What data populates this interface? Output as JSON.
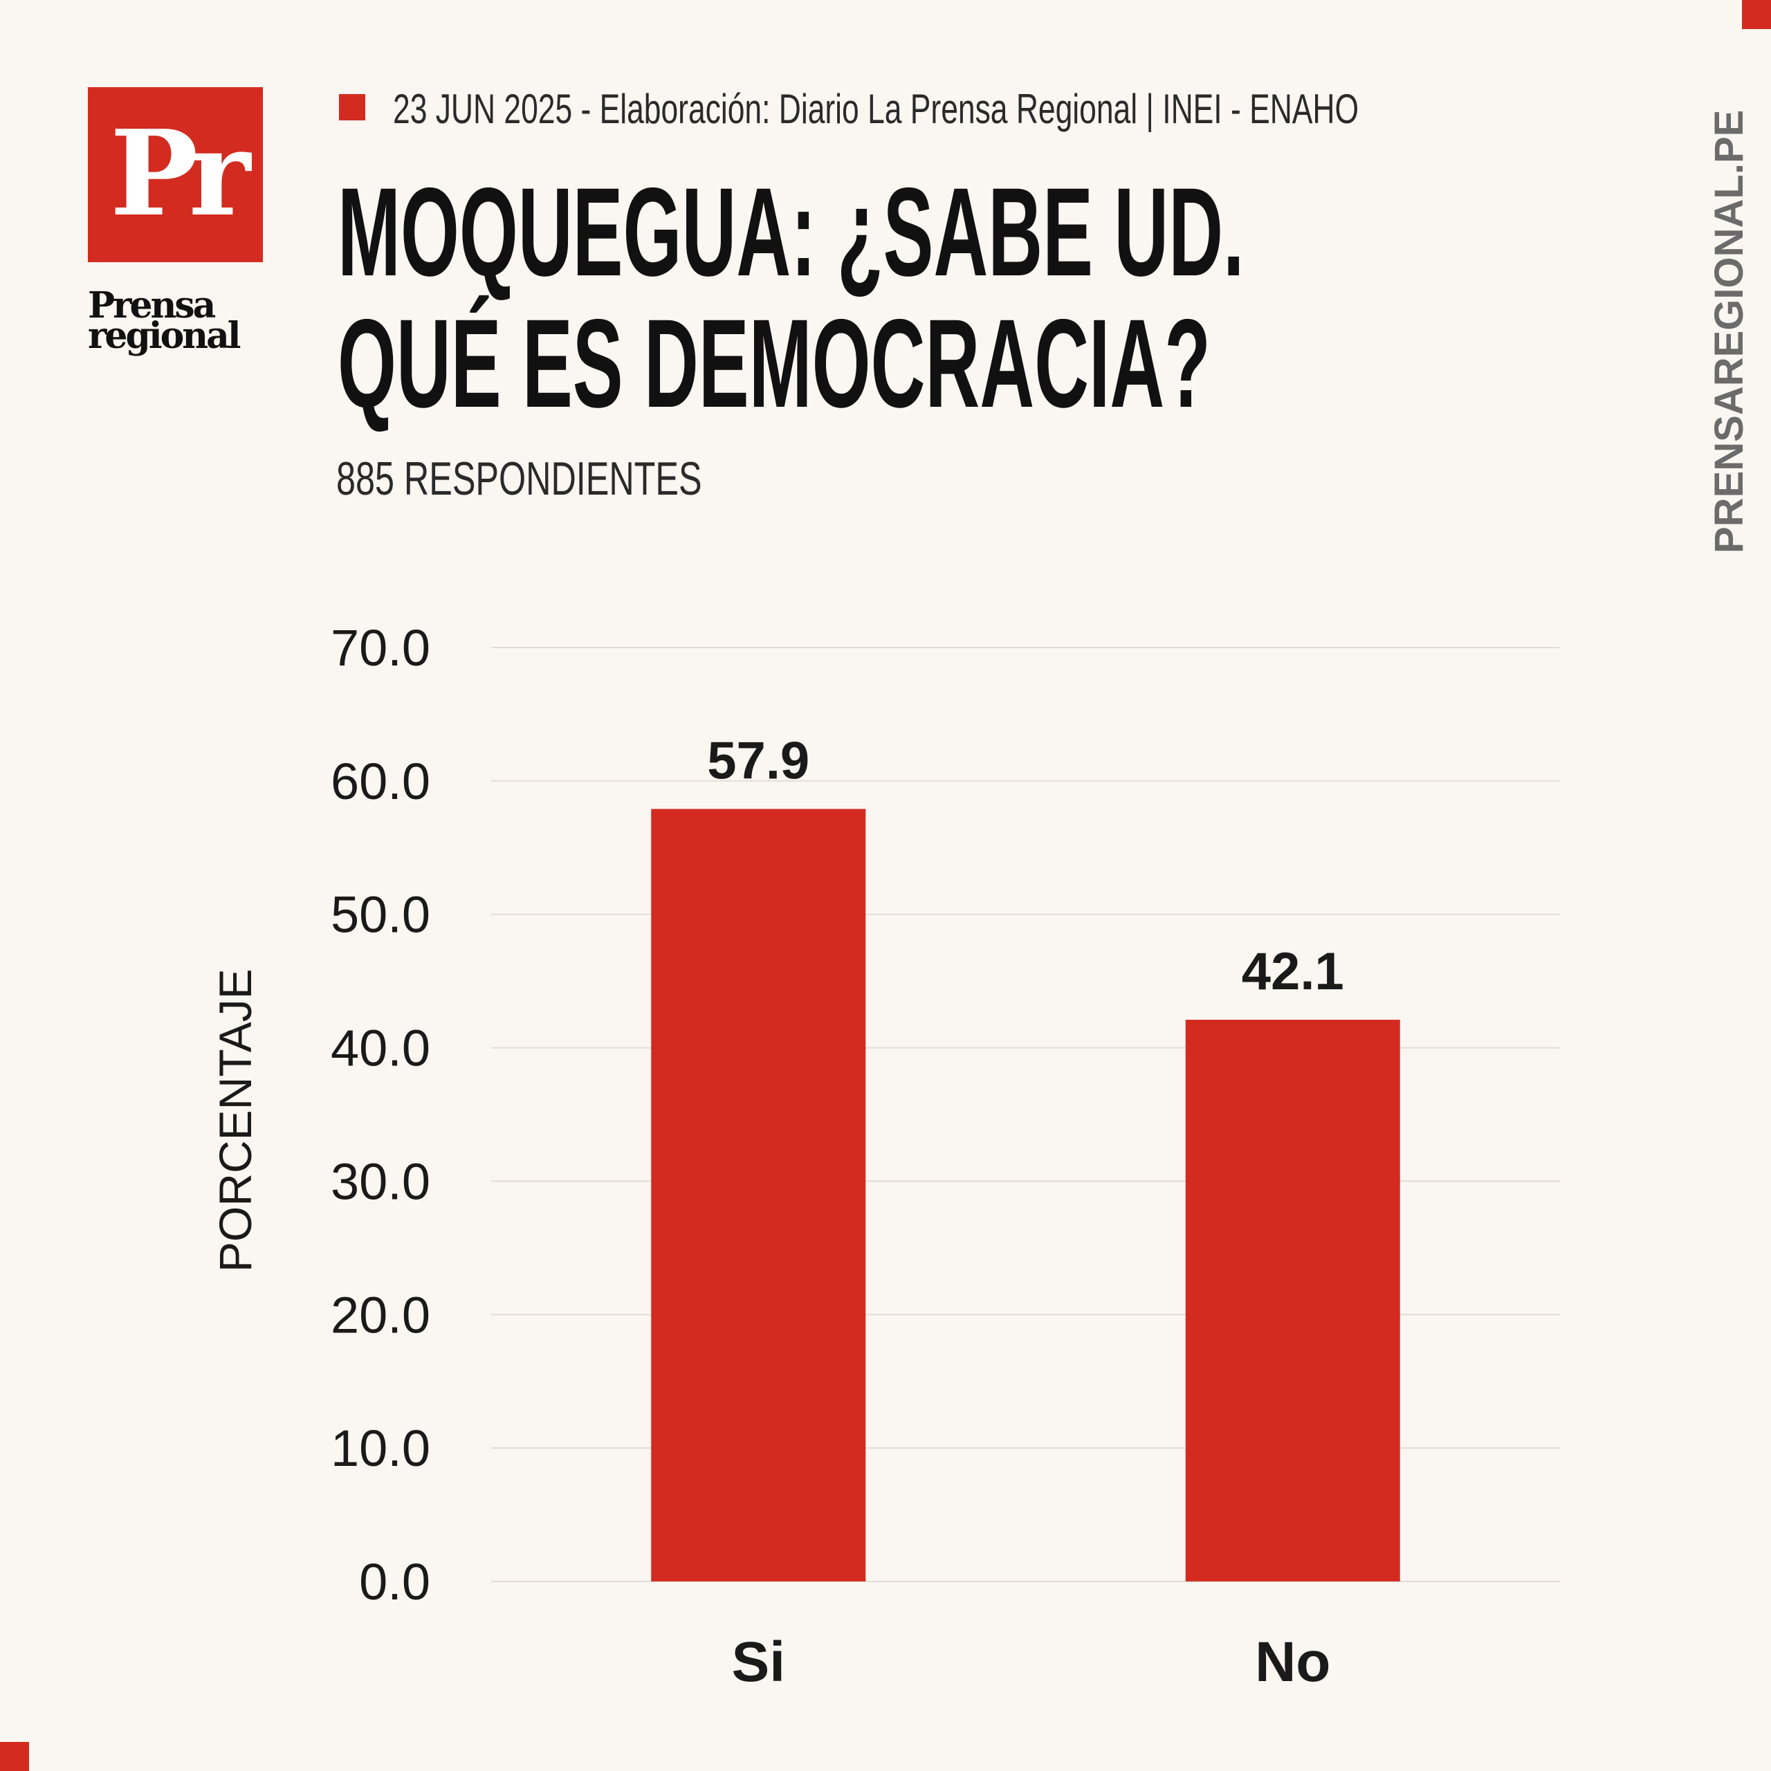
{
  "brand": {
    "logo_mark": "Pr",
    "logo_word_1": "Prensa",
    "logo_word_2": "regional",
    "site": "PRENSAREGIONAL.PE",
    "accent": "#d42b20"
  },
  "header": {
    "source_line": "23 JUN 2025 -  Elaboración: Diario La Prensa Regional | INEI - ENAHO",
    "title": "MOQUEGUA: ¿SABE UD. QUÉ ES DEMOCRACIA?",
    "subtitle": "885 RESPONDIENTES"
  },
  "chart_data": {
    "type": "bar",
    "title": "MOQUEGUA: ¿SABE UD. QUÉ ES DEMOCRACIA?",
    "xlabel": "",
    "ylabel": "PORCENTAJE",
    "categories": [
      "Si",
      "No"
    ],
    "values": [
      57.9,
      42.1
    ],
    "value_labels": [
      "57.9",
      "42.1"
    ],
    "ylim": [
      0,
      70
    ],
    "yticks": [
      "0.0",
      "10.0",
      "20.0",
      "30.0",
      "40.0",
      "50.0",
      "60.0",
      "70.0"
    ],
    "grid": true,
    "legend": "none",
    "bar_color": "#d42b20"
  }
}
